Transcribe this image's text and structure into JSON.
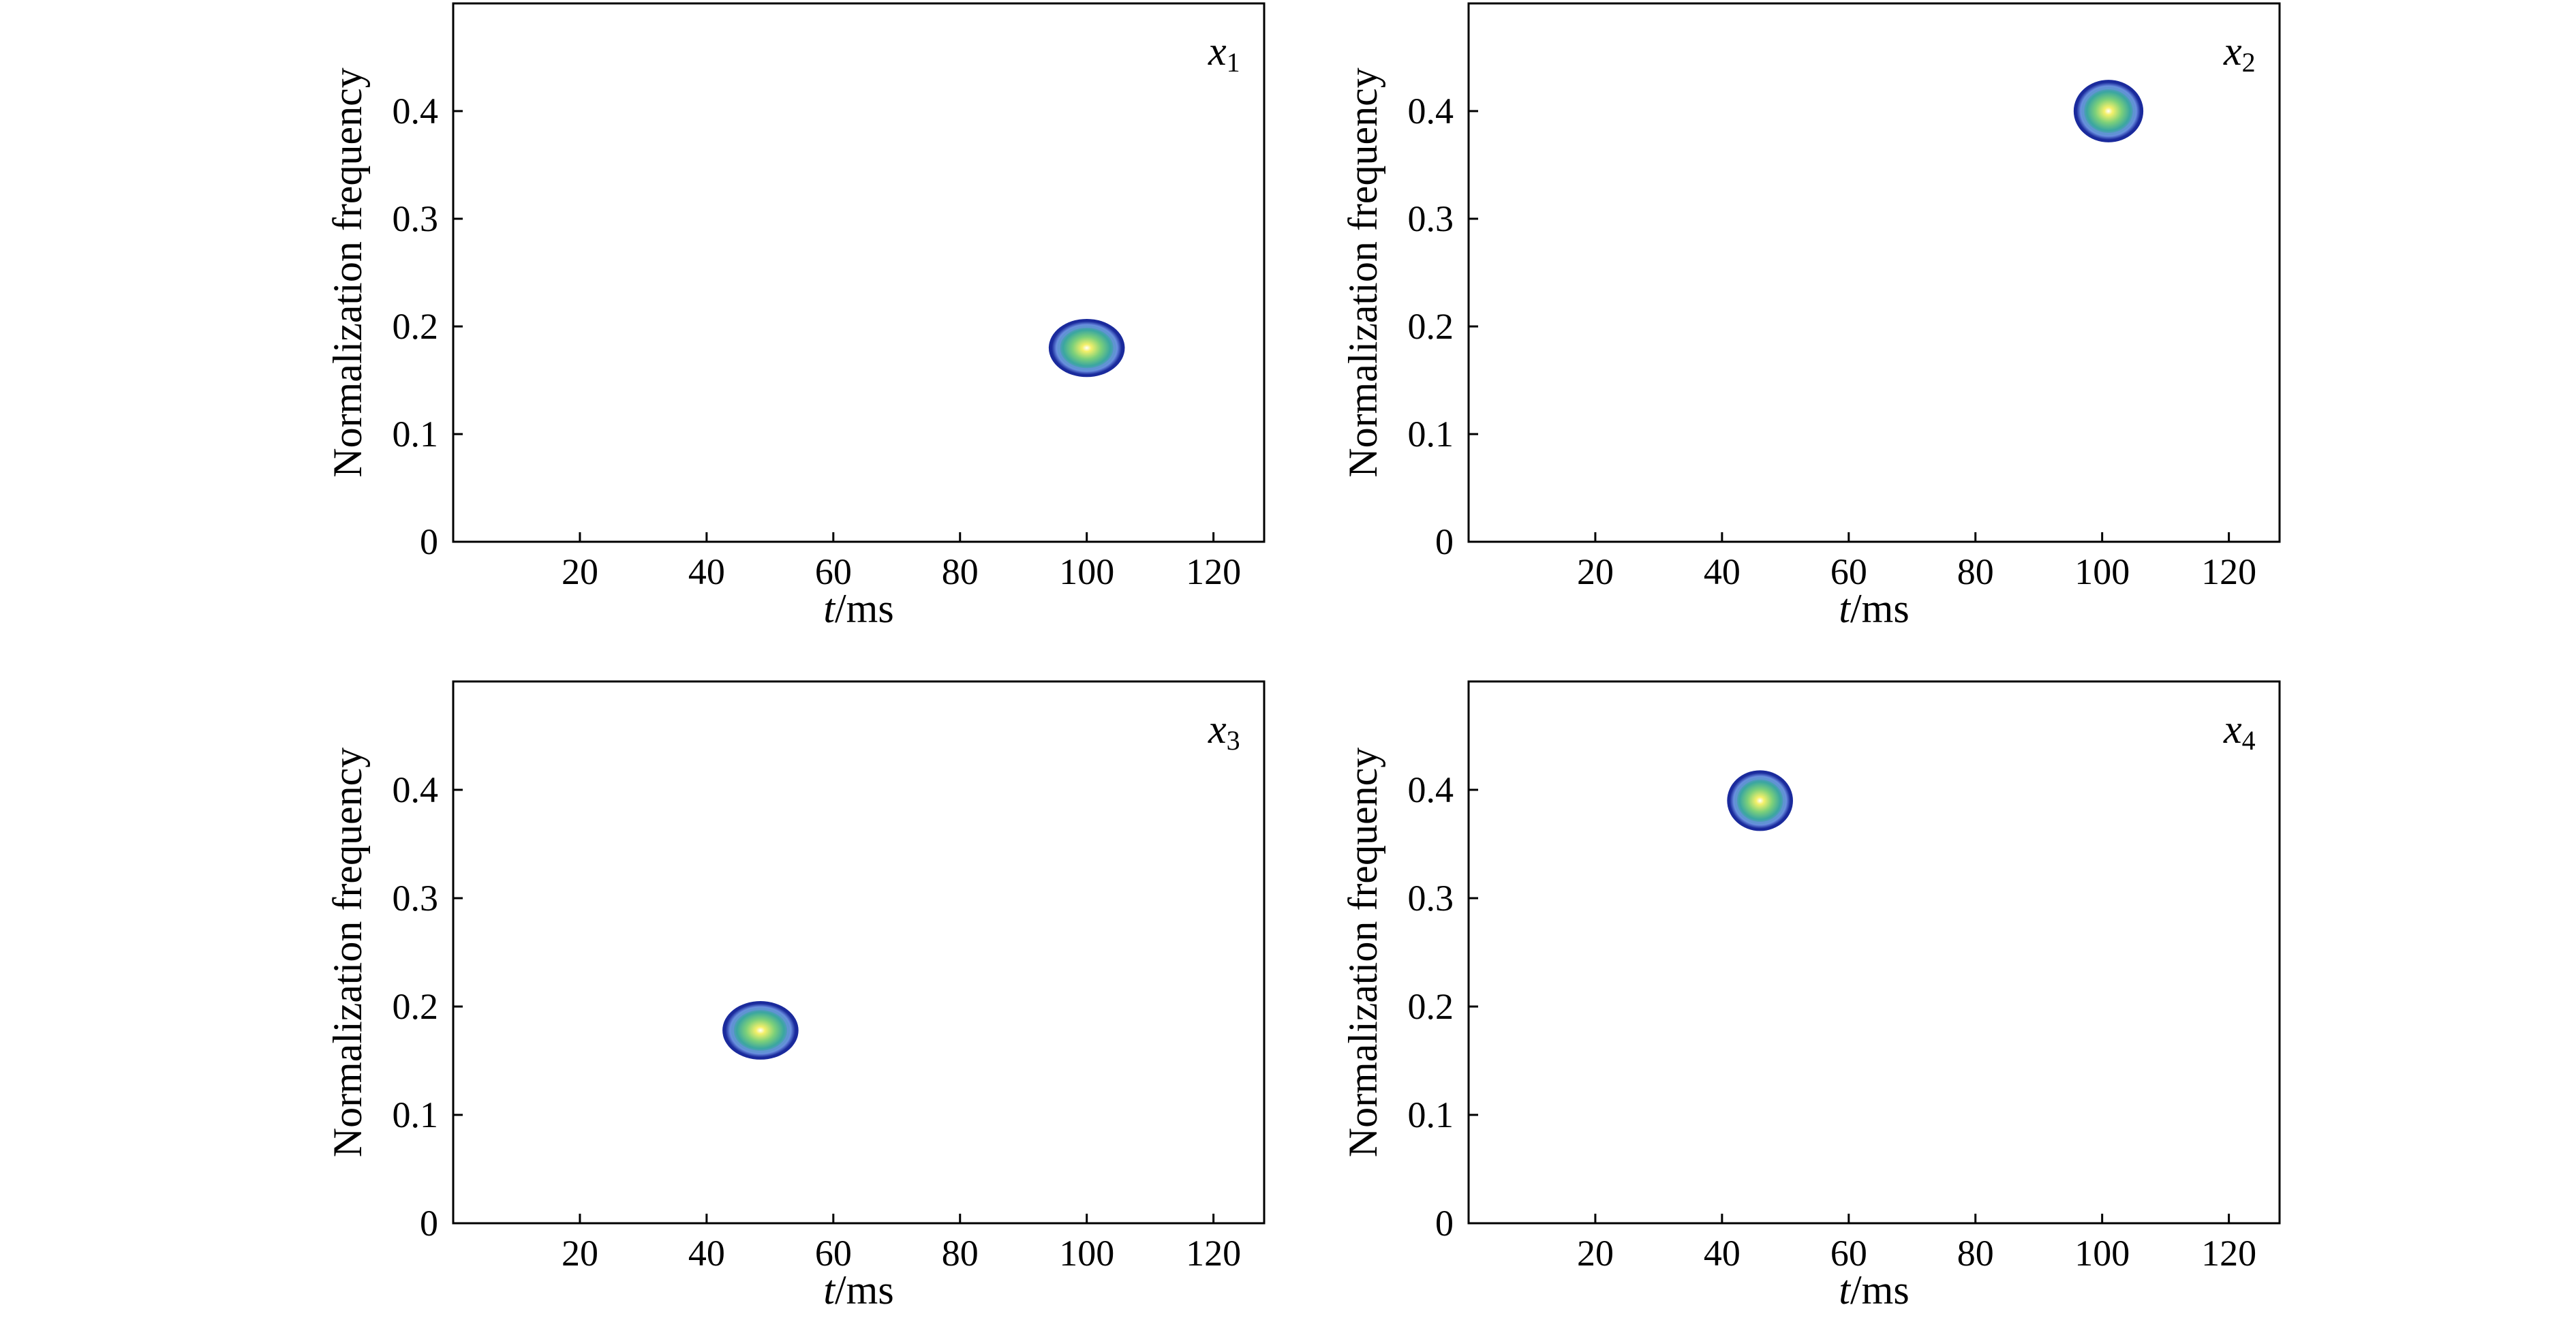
{
  "chart_data": [
    {
      "type": "heatmap",
      "panel_label": "x",
      "panel_subscript": "1",
      "xlabel_italic": "t",
      "xlabel_unit": "/ms",
      "ylabel": "Normalization frequency",
      "xlim": [
        0,
        128
      ],
      "ylim": [
        0,
        0.5
      ],
      "xticks": [
        20,
        40,
        60,
        80,
        100,
        120
      ],
      "yticks": [
        0,
        0.1,
        0.2,
        0.3,
        0.4
      ],
      "ytick_labels": [
        "0",
        "0.1",
        "0.2",
        "0.3",
        "0.4"
      ],
      "blob": {
        "t": 100,
        "f": 0.18,
        "t_halfwidth": 6,
        "f_halfwidth": 0.027
      },
      "grid": false
    },
    {
      "type": "heatmap",
      "panel_label": "x",
      "panel_subscript": "2",
      "xlabel_italic": "t",
      "xlabel_unit": "/ms",
      "ylabel": "Normalization frequency",
      "xlim": [
        0,
        128
      ],
      "ylim": [
        0,
        0.5
      ],
      "xticks": [
        20,
        40,
        60,
        80,
        100,
        120
      ],
      "yticks": [
        0,
        0.1,
        0.2,
        0.3,
        0.4
      ],
      "ytick_labels": [
        "0",
        "0.1",
        "0.2",
        "0.3",
        "0.4"
      ],
      "blob": {
        "t": 101,
        "f": 0.4,
        "t_halfwidth": 5.5,
        "f_halfwidth": 0.029
      },
      "grid": false
    },
    {
      "type": "heatmap",
      "panel_label": "x",
      "panel_subscript": "3",
      "xlabel_italic": "t",
      "xlabel_unit": "/ms",
      "ylabel": "Normalization frequency",
      "xlim": [
        0,
        128
      ],
      "ylim": [
        0,
        0.5
      ],
      "xticks": [
        20,
        40,
        60,
        80,
        100,
        120
      ],
      "yticks": [
        0,
        0.1,
        0.2,
        0.3,
        0.4
      ],
      "ytick_labels": [
        "0",
        "0.1",
        "0.2",
        "0.3",
        "0.4"
      ],
      "blob": {
        "t": 48.5,
        "f": 0.178,
        "t_halfwidth": 6,
        "f_halfwidth": 0.027
      },
      "grid": false
    },
    {
      "type": "heatmap",
      "panel_label": "x",
      "panel_subscript": "4",
      "xlabel_italic": "t",
      "xlabel_unit": "/ms",
      "ylabel": "Normalization frequency",
      "xlim": [
        0,
        128
      ],
      "ylim": [
        0,
        0.5
      ],
      "xticks": [
        20,
        40,
        60,
        80,
        100,
        120
      ],
      "yticks": [
        0,
        0.1,
        0.2,
        0.3,
        0.4
      ],
      "ytick_labels": [
        "0",
        "0.1",
        "0.2",
        "0.3",
        "0.4"
      ],
      "blob": {
        "t": 46,
        "f": 0.39,
        "t_halfwidth": 5.2,
        "f_halfwidth": 0.028
      },
      "grid": false
    }
  ],
  "colors": {
    "outer_ring": "#1a2a9c",
    "ring_2": "#6a8fe0",
    "ring_3": "#3aa6a0",
    "ring_4": "#7cd07a",
    "core": "#f4f06a",
    "center": "#ffffff"
  }
}
